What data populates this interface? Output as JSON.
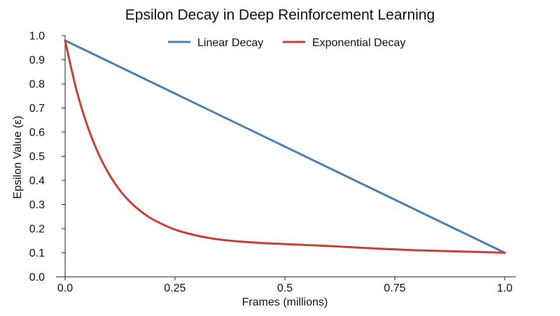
{
  "chart_data": {
    "type": "line",
    "title": "Epsilon Decay in Deep Reinforcement Learning",
    "xlabel": "Frames (millions)",
    "ylabel": "Epsilon Value (ε)",
    "xlim": [
      0.0,
      1.0
    ],
    "ylim": [
      0.0,
      1.0
    ],
    "x_ticks": [
      0.0,
      0.25,
      0.5,
      0.75,
      1.0
    ],
    "x_tick_labels": [
      "0.0",
      "0.25",
      "0.5",
      "0.75",
      "1.0"
    ],
    "y_ticks": [
      0.0,
      0.1,
      0.2,
      0.3,
      0.4,
      0.5,
      0.6,
      0.7,
      0.8,
      0.9,
      1.0
    ],
    "y_tick_labels": [
      "0.0",
      "0.1",
      "0.2",
      "0.3",
      "0.4",
      "0.5",
      "0.6",
      "0.7",
      "0.8",
      "0.9",
      "1.0"
    ],
    "grid": false,
    "legend_position": "top",
    "series": [
      {
        "name": "Linear Decay",
        "color": "#4a7fb0",
        "x": [
          0.0,
          1.0
        ],
        "y": [
          0.98,
          0.1
        ]
      },
      {
        "name": "Exponential Decay",
        "color": "#c6403a",
        "x": [
          0.0,
          0.025,
          0.05,
          0.075,
          0.1,
          0.125,
          0.15,
          0.175,
          0.2,
          0.25,
          0.3,
          0.35,
          0.4,
          0.45,
          0.5,
          0.6,
          0.7,
          0.8,
          0.9,
          1.0
        ],
        "y": [
          0.98,
          0.781,
          0.63,
          0.514,
          0.426,
          0.358,
          0.307,
          0.268,
          0.238,
          0.196,
          0.171,
          0.155,
          0.146,
          0.14,
          0.136,
          0.128,
          0.118,
          0.11,
          0.105,
          0.1
        ]
      }
    ]
  }
}
